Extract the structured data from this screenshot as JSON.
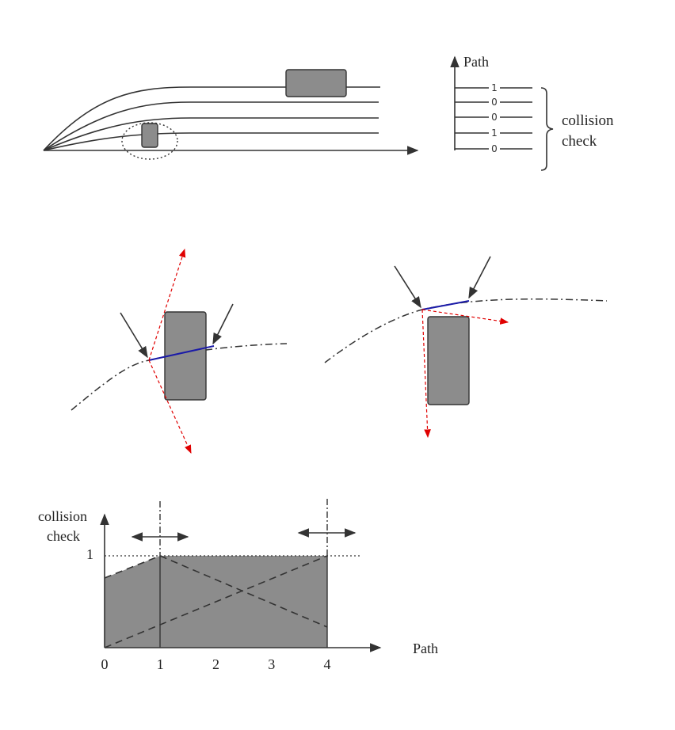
{
  "top_diagram": {
    "path_axis_label": "Path",
    "bracket_label_line1": "collision",
    "bracket_label_line2": "check",
    "path_flags": [
      "1",
      "0",
      "0",
      "1",
      "0"
    ]
  },
  "bottom_chart": {
    "y_label_line1": "collision",
    "y_label_line2": "check",
    "y_tick": "1",
    "x_label": "Path",
    "x_ticks": [
      "0",
      "1",
      "2",
      "3",
      "4"
    ]
  },
  "colors": {
    "obstacle_fill": "#8c8c8c",
    "line": "#333333",
    "contact_segment": "#1a1aa8",
    "normal_vector": "#e00000"
  }
}
